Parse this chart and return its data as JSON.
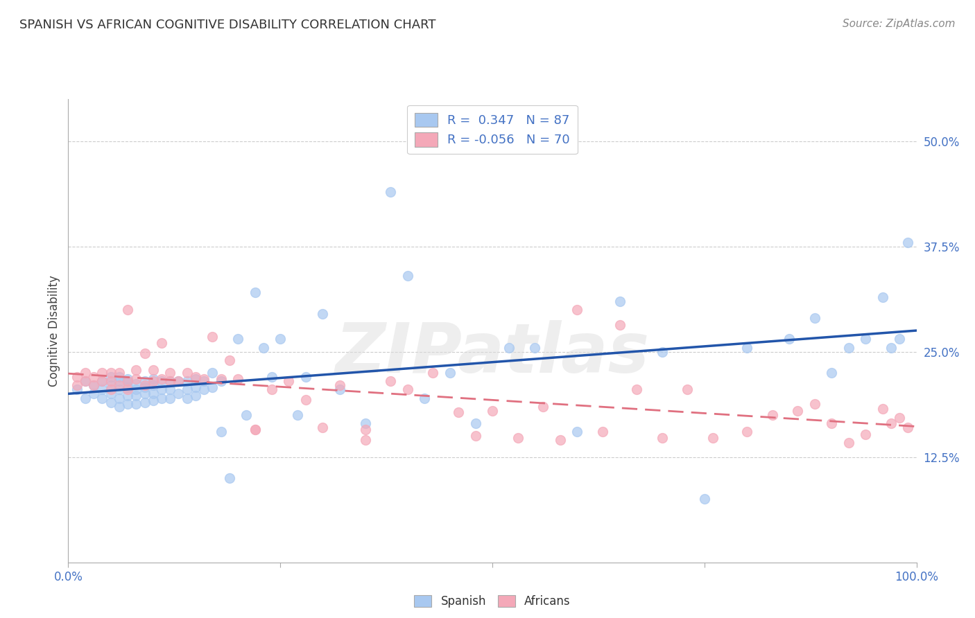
{
  "title": "SPANISH VS AFRICAN COGNITIVE DISABILITY CORRELATION CHART",
  "source": "Source: ZipAtlas.com",
  "ylabel": "Cognitive Disability",
  "ytick_labels": [
    "50.0%",
    "37.5%",
    "25.0%",
    "12.5%"
  ],
  "ytick_values": [
    0.5,
    0.375,
    0.25,
    0.125
  ],
  "xlim": [
    0.0,
    1.0
  ],
  "ylim": [
    0.0,
    0.55
  ],
  "legend_r_spanish": "R =  0.347",
  "legend_n_spanish": "N = 87",
  "legend_r_africans": "R = -0.056",
  "legend_n_africans": "N = 70",
  "spanish_color": "#A8C8F0",
  "africans_color": "#F4A8B8",
  "spanish_line_color": "#2255AA",
  "africans_line_color": "#E07080",
  "background_color": "#FFFFFF",
  "spanish_x": [
    0.01,
    0.02,
    0.02,
    0.03,
    0.03,
    0.04,
    0.04,
    0.04,
    0.05,
    0.05,
    0.05,
    0.05,
    0.06,
    0.06,
    0.06,
    0.06,
    0.06,
    0.07,
    0.07,
    0.07,
    0.07,
    0.07,
    0.08,
    0.08,
    0.08,
    0.08,
    0.09,
    0.09,
    0.09,
    0.09,
    0.1,
    0.1,
    0.1,
    0.1,
    0.11,
    0.11,
    0.11,
    0.12,
    0.12,
    0.12,
    0.13,
    0.13,
    0.14,
    0.14,
    0.14,
    0.15,
    0.15,
    0.15,
    0.16,
    0.16,
    0.17,
    0.17,
    0.18,
    0.18,
    0.19,
    0.2,
    0.21,
    0.22,
    0.23,
    0.24,
    0.25,
    0.27,
    0.28,
    0.3,
    0.32,
    0.35,
    0.38,
    0.4,
    0.42,
    0.45,
    0.48,
    0.52,
    0.55,
    0.6,
    0.65,
    0.7,
    0.75,
    0.8,
    0.85,
    0.88,
    0.9,
    0.92,
    0.94,
    0.96,
    0.97,
    0.98,
    0.99
  ],
  "spanish_y": [
    0.205,
    0.195,
    0.215,
    0.2,
    0.21,
    0.195,
    0.205,
    0.215,
    0.19,
    0.2,
    0.21,
    0.22,
    0.185,
    0.195,
    0.205,
    0.215,
    0.22,
    0.188,
    0.198,
    0.208,
    0.215,
    0.218,
    0.188,
    0.198,
    0.205,
    0.212,
    0.19,
    0.2,
    0.208,
    0.215,
    0.192,
    0.2,
    0.21,
    0.218,
    0.195,
    0.205,
    0.215,
    0.195,
    0.205,
    0.215,
    0.2,
    0.215,
    0.195,
    0.205,
    0.215,
    0.198,
    0.208,
    0.218,
    0.205,
    0.215,
    0.208,
    0.225,
    0.155,
    0.215,
    0.1,
    0.265,
    0.175,
    0.32,
    0.255,
    0.22,
    0.265,
    0.175,
    0.22,
    0.295,
    0.205,
    0.165,
    0.44,
    0.34,
    0.195,
    0.225,
    0.165,
    0.255,
    0.255,
    0.155,
    0.31,
    0.25,
    0.075,
    0.255,
    0.265,
    0.29,
    0.225,
    0.255,
    0.265,
    0.315,
    0.255,
    0.265,
    0.38
  ],
  "africans_x": [
    0.01,
    0.01,
    0.02,
    0.02,
    0.03,
    0.03,
    0.04,
    0.04,
    0.05,
    0.05,
    0.05,
    0.06,
    0.06,
    0.07,
    0.07,
    0.07,
    0.08,
    0.08,
    0.09,
    0.09,
    0.1,
    0.1,
    0.11,
    0.11,
    0.12,
    0.12,
    0.13,
    0.14,
    0.15,
    0.16,
    0.17,
    0.18,
    0.19,
    0.2,
    0.22,
    0.24,
    0.26,
    0.28,
    0.3,
    0.32,
    0.35,
    0.38,
    0.4,
    0.43,
    0.46,
    0.5,
    0.53,
    0.56,
    0.6,
    0.63,
    0.67,
    0.7,
    0.73,
    0.76,
    0.8,
    0.83,
    0.86,
    0.88,
    0.9,
    0.92,
    0.94,
    0.96,
    0.97,
    0.98,
    0.99,
    0.22,
    0.35,
    0.48,
    0.58,
    0.65
  ],
  "africans_y": [
    0.21,
    0.22,
    0.215,
    0.225,
    0.21,
    0.22,
    0.215,
    0.225,
    0.205,
    0.215,
    0.225,
    0.21,
    0.225,
    0.205,
    0.215,
    0.3,
    0.218,
    0.228,
    0.21,
    0.248,
    0.215,
    0.228,
    0.218,
    0.26,
    0.215,
    0.225,
    0.215,
    0.225,
    0.22,
    0.218,
    0.268,
    0.218,
    0.24,
    0.218,
    0.158,
    0.205,
    0.215,
    0.193,
    0.16,
    0.21,
    0.158,
    0.215,
    0.205,
    0.225,
    0.178,
    0.18,
    0.148,
    0.185,
    0.3,
    0.155,
    0.205,
    0.148,
    0.205,
    0.148,
    0.155,
    0.175,
    0.18,
    0.188,
    0.165,
    0.142,
    0.152,
    0.182,
    0.165,
    0.172,
    0.16,
    0.158,
    0.145,
    0.15,
    0.145,
    0.282
  ]
}
